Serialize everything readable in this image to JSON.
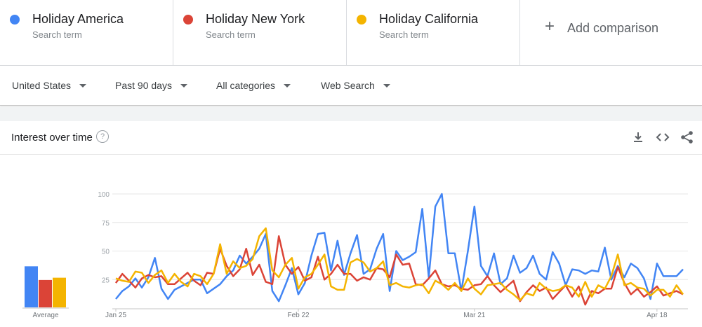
{
  "terms": [
    {
      "name": "Holiday America",
      "sub": "Search term",
      "color": "#4285f4"
    },
    {
      "name": "Holiday New York",
      "sub": "Search term",
      "color": "#db4437"
    },
    {
      "name": "Holiday California",
      "sub": "Search term",
      "color": "#f4b400"
    }
  ],
  "add_label": "Add comparison",
  "add_icon": "plus-icon",
  "filters": {
    "region": "United States",
    "time": "Past 90 days",
    "category": "All categories",
    "search_type": "Web Search"
  },
  "card": {
    "title": "Interest over time",
    "help_icon": "help-icon",
    "tools": [
      "download-icon",
      "embed-icon",
      "share-icon"
    ]
  },
  "chart_data": {
    "type": "line",
    "ylim": [
      0,
      100
    ],
    "yticks": [
      25,
      50,
      75,
      100
    ],
    "grid": true,
    "x_tick_labels": [
      {
        "index": 0,
        "label": "Jan 25"
      },
      {
        "index": 28,
        "label": "Feb 22"
      },
      {
        "index": 55,
        "label": "Mar 21"
      },
      {
        "index": 83,
        "label": "Apr 18"
      }
    ],
    "averages_label": "Average",
    "averages": [
      36,
      24,
      26
    ],
    "series": [
      {
        "name": "Holiday America",
        "color": "#4285f4",
        "values": [
          8,
          15,
          19,
          26,
          18,
          27,
          44,
          17,
          8,
          16,
          19,
          22,
          25,
          25,
          13,
          17,
          21,
          28,
          33,
          46,
          39,
          45,
          52,
          65,
          15,
          6,
          20,
          35,
          12,
          22,
          46,
          65,
          66,
          33,
          59,
          29,
          48,
          64,
          30,
          34,
          52,
          65,
          15,
          50,
          42,
          45,
          49,
          87,
          27,
          89,
          100,
          48,
          48,
          15,
          50,
          89,
          37,
          28,
          48,
          21,
          26,
          46,
          31,
          35,
          46,
          30,
          25,
          49,
          39,
          20,
          34,
          33,
          30,
          33,
          32,
          53,
          25,
          37,
          27,
          39,
          35,
          26,
          8,
          39,
          28,
          28,
          28,
          34
        ]
      },
      {
        "name": "Holiday New York",
        "color": "#db4437",
        "values": [
          22,
          30,
          24,
          18,
          26,
          29,
          27,
          28,
          21,
          21,
          26,
          31,
          24,
          20,
          31,
          30,
          52,
          37,
          28,
          34,
          52,
          29,
          38,
          23,
          21,
          63,
          38,
          30,
          36,
          24,
          27,
          45,
          25,
          30,
          38,
          30,
          30,
          24,
          27,
          25,
          35,
          34,
          27,
          47,
          38,
          39,
          21,
          20,
          26,
          33,
          21,
          19,
          20,
          17,
          16,
          20,
          21,
          28,
          20,
          14,
          19,
          24,
          6,
          14,
          20,
          15,
          18,
          8,
          14,
          20,
          10,
          19,
          3,
          15,
          13,
          17,
          17,
          36,
          22,
          12,
          17,
          10,
          14,
          19,
          11,
          13,
          15,
          12
        ]
      },
      {
        "name": "Holiday California",
        "color": "#f4b400",
        "values": [
          26,
          24,
          23,
          32,
          31,
          22,
          29,
          33,
          22,
          30,
          23,
          19,
          30,
          28,
          21,
          30,
          56,
          30,
          41,
          35,
          37,
          43,
          63,
          70,
          33,
          27,
          38,
          44,
          17,
          27,
          30,
          38,
          47,
          19,
          16,
          16,
          40,
          43,
          40,
          32,
          35,
          41,
          20,
          22,
          19,
          18,
          20,
          21,
          13,
          24,
          21,
          16,
          22,
          15,
          26,
          17,
          12,
          20,
          21,
          22,
          16,
          12,
          7,
          13,
          11,
          22,
          17,
          15,
          16,
          20,
          18,
          10,
          23,
          10,
          20,
          17,
          28,
          47,
          20,
          22,
          18,
          17,
          11,
          16,
          16,
          10,
          20,
          12
        ]
      }
    ]
  }
}
